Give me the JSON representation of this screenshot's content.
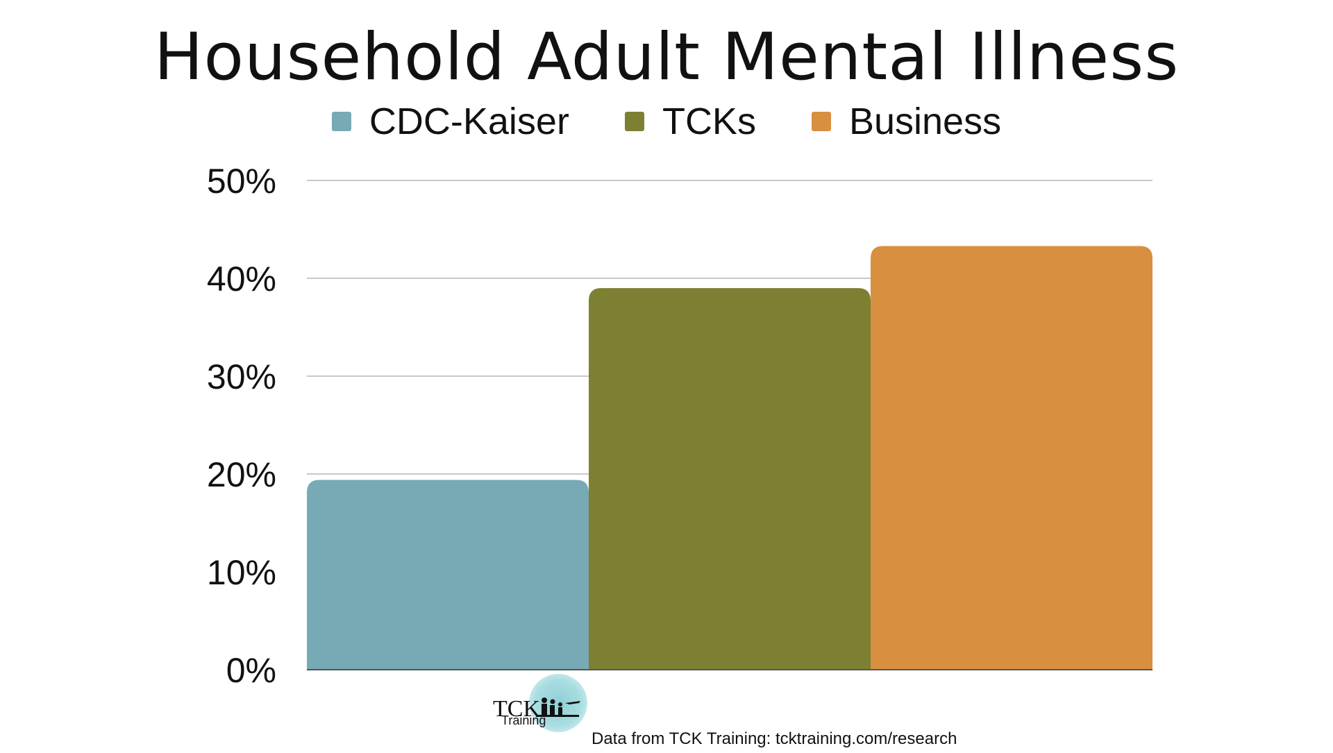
{
  "chart_data": {
    "type": "bar",
    "title": "Household Adult Mental Illness",
    "categories": [
      ""
    ],
    "series": [
      {
        "name": "CDC-Kaiser",
        "values": [
          19.4
        ],
        "color": "#77aab5"
      },
      {
        "name": "TCKs",
        "values": [
          39.0
        ],
        "color": "#7d8033"
      },
      {
        "name": "Business",
        "values": [
          43.3
        ],
        "color": "#d98f40"
      }
    ],
    "ylim": [
      0,
      50
    ],
    "yticks": [
      0,
      10,
      20,
      30,
      40,
      50
    ],
    "ytick_labels": [
      "0%",
      "10%",
      "20%",
      "30%",
      "40%",
      "50%"
    ],
    "xlabel": "",
    "ylabel": "",
    "grid": true,
    "legend_position": "top"
  },
  "footer": {
    "logo_text_line1": "TCK",
    "logo_text_line2": "Training",
    "source": "Data from TCK Training: tcktraining.com/research"
  }
}
